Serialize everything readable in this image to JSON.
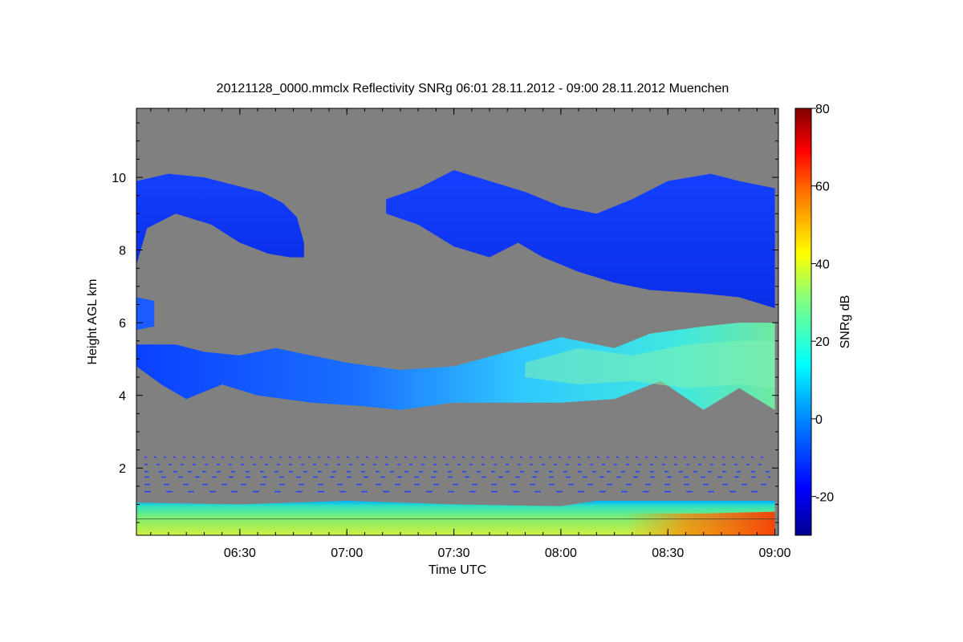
{
  "chart_data": {
    "type": "heatmap",
    "title": "20121128_0000.mmclx Reflectivity SNRg   06:01 28.11.2012 - 09:00 28.11.2012 Muenchen",
    "xlabel": "Time UTC",
    "ylabel": "Height AGL km",
    "colorbar_label": "SNRg dB",
    "xlim": [
      "06:01",
      "09:01"
    ],
    "ylim": [
      0.15,
      11.9
    ],
    "x_ticks": [
      "06:30",
      "07:00",
      "07:30",
      "08:00",
      "08:30",
      "09:00"
    ],
    "y_ticks": [
      2,
      4,
      6,
      8,
      10
    ],
    "colorbar_range": [
      -30,
      80
    ],
    "colorbar_ticks": [
      -20,
      0,
      20,
      40,
      60,
      80
    ],
    "background_color": "#808080",
    "grid": false,
    "features": [
      {
        "label": "upper cloud layer west",
        "time_start": "06:01",
        "time_end": "06:48",
        "base_km": 7.8,
        "top_km": 10.2,
        "snr_db": -12
      },
      {
        "label": "upper cloud layer east",
        "time_start": "07:11",
        "time_end": "09:00",
        "base_km": 6.6,
        "top_km": 10.3,
        "snr_db": -10
      },
      {
        "label": "mid cloud layer",
        "time_start": "06:01",
        "time_end": "09:00",
        "base_km": 3.6,
        "top_km": 5.9,
        "snr_db": 5
      },
      {
        "label": "boundary layer",
        "time_start": "06:01",
        "time_end": "09:00",
        "base_km": 0.15,
        "top_km": 1.1,
        "snr_db": 30
      }
    ]
  }
}
